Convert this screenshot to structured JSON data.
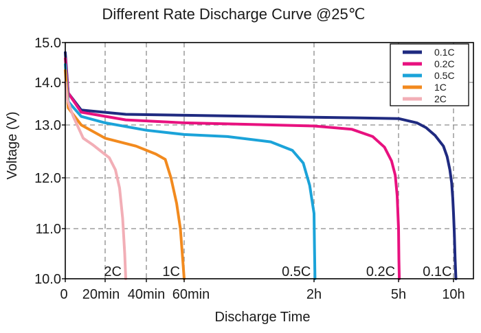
{
  "chart_data": {
    "type": "line",
    "title": "Different Rate Discharge Curve @25℃",
    "xlabel": "Discharge Time",
    "ylabel": "Voltage (V)",
    "ylim": [
      10.0,
      15.0
    ],
    "y_ticks": [
      "10.0",
      "11.0",
      "12.0",
      "13.0",
      "14.0",
      "15.0"
    ],
    "x_ticks": [
      {
        "label": "0",
        "min": 0
      },
      {
        "label": "20min",
        "min": 20
      },
      {
        "label": "40min",
        "min": 40
      },
      {
        "label": "60min",
        "min": 60
      },
      {
        "label": "2h",
        "min": 120
      },
      {
        "label": "5h",
        "min": 300
      },
      {
        "label": "10h",
        "min": 600
      }
    ],
    "x_breaks_min": [
      0,
      20,
      40,
      60,
      120,
      300,
      600,
      650
    ],
    "legend_position": "top-right",
    "grid": true,
    "series": [
      {
        "name": "0.1C",
        "color": "#1f2a80",
        "points": [
          [
            0,
            14.75
          ],
          [
            1.5,
            13.75
          ],
          [
            8,
            13.35
          ],
          [
            30,
            13.25
          ],
          [
            120,
            13.18
          ],
          [
            200,
            13.17
          ],
          [
            300,
            13.15
          ],
          [
            400,
            13.05
          ],
          [
            450,
            12.95
          ],
          [
            500,
            12.8
          ],
          [
            545,
            12.6
          ],
          [
            565,
            12.4
          ],
          [
            580,
            12.15
          ],
          [
            590,
            11.9
          ],
          [
            596,
            11.6
          ],
          [
            600,
            11.3
          ],
          [
            602,
            10.9
          ],
          [
            604,
            10.4
          ],
          [
            606,
            10.0
          ]
        ]
      },
      {
        "name": "0.2C",
        "color": "#e8117f",
        "points": [
          [
            0,
            14.6
          ],
          [
            1.5,
            13.75
          ],
          [
            8,
            13.3
          ],
          [
            30,
            13.12
          ],
          [
            60,
            13.05
          ],
          [
            120,
            12.98
          ],
          [
            200,
            12.92
          ],
          [
            245,
            12.78
          ],
          [
            270,
            12.58
          ],
          [
            285,
            12.32
          ],
          [
            293,
            12.05
          ],
          [
            297,
            11.65
          ],
          [
            300,
            11.0
          ],
          [
            302,
            10.4
          ],
          [
            304,
            10.0
          ]
        ]
      },
      {
        "name": "0.5C",
        "color": "#1ba3d9",
        "points": [
          [
            0,
            14.45
          ],
          [
            1.5,
            13.55
          ],
          [
            8,
            13.2
          ],
          [
            20,
            13.05
          ],
          [
            40,
            12.9
          ],
          [
            60,
            12.82
          ],
          [
            80,
            12.78
          ],
          [
            100,
            12.68
          ],
          [
            110,
            12.52
          ],
          [
            115,
            12.28
          ],
          [
            118,
            11.85
          ],
          [
            120,
            11.3
          ],
          [
            121,
            10.6
          ],
          [
            122,
            10.0
          ]
        ]
      },
      {
        "name": "1C",
        "color": "#f28a1e",
        "points": [
          [
            0,
            14.3
          ],
          [
            1.5,
            13.4
          ],
          [
            8,
            13.0
          ],
          [
            20,
            12.75
          ],
          [
            35,
            12.6
          ],
          [
            45,
            12.45
          ],
          [
            50,
            12.35
          ],
          [
            53,
            12.0
          ],
          [
            56,
            11.5
          ],
          [
            58,
            11.0
          ],
          [
            59,
            10.5
          ],
          [
            60,
            10.0
          ]
        ]
      },
      {
        "name": "2C",
        "color": "#f2aeb6",
        "points": [
          [
            0,
            14.0
          ],
          [
            1,
            13.6
          ],
          [
            4,
            13.2
          ],
          [
            9,
            12.75
          ],
          [
            14,
            12.62
          ],
          [
            18,
            12.5
          ],
          [
            22,
            12.38
          ],
          [
            25,
            12.15
          ],
          [
            27,
            11.8
          ],
          [
            28.5,
            11.2
          ],
          [
            29.5,
            10.5
          ],
          [
            30,
            10.0
          ]
        ]
      }
    ],
    "curve_labels": [
      {
        "text": "2C",
        "series": "2C"
      },
      {
        "text": "1C",
        "series": "1C"
      },
      {
        "text": "0.5C",
        "series": "0.5C"
      },
      {
        "text": "0.2C",
        "series": "0.2C"
      },
      {
        "text": "0.1C",
        "series": "0.1C"
      }
    ]
  }
}
